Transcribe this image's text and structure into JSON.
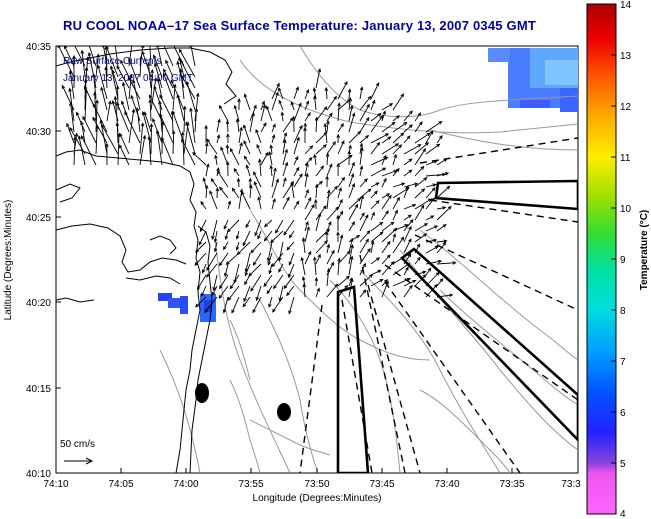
{
  "title": "RU COOL  NOAA–17  Sea Surface Temperature:  January 13, 2007 0345 GMT",
  "legend": {
    "line1": "Raw Surface Currents",
    "line2": "January 13, 2007 04:00 GMT"
  },
  "scale_label": "50 cm/s",
  "x_axis": {
    "label": "Longitude (Degrees:Minutes)",
    "ticks": [
      "74:10",
      "74:05",
      "74:00",
      "73:55",
      "73:50",
      "73:45",
      "73:40",
      "73:35",
      "73:3"
    ]
  },
  "y_axis": {
    "label": "Latitude (Degrees:Minutes)",
    "ticks": [
      "40:35",
      "40:30",
      "40:25",
      "40:20",
      "40:15",
      "40:10"
    ]
  },
  "colorbar": {
    "label": "Temperature (°C)",
    "min": 4,
    "max": 14,
    "ticks": [
      "14",
      "13",
      "12",
      "11",
      "10",
      "9",
      "8",
      "7",
      "6",
      "5",
      "4"
    ]
  },
  "colors": {
    "title": "#0000aa",
    "legend": "#00008b",
    "contour": "#999999",
    "coast": "#000000"
  }
}
